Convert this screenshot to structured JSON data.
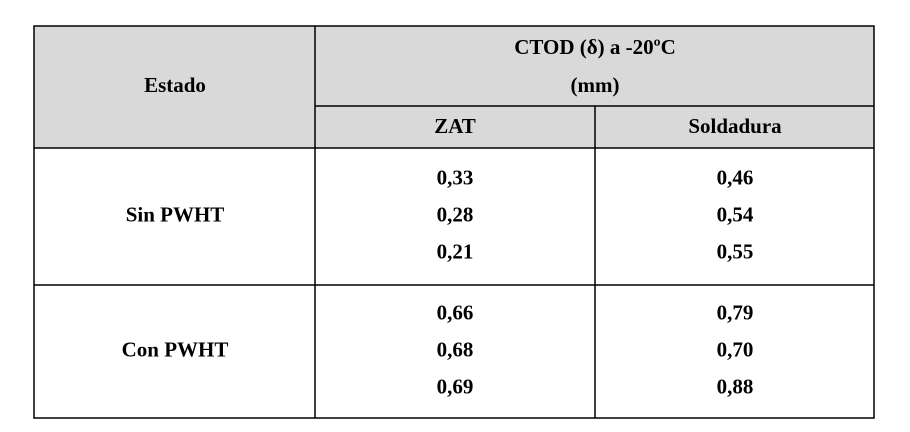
{
  "table": {
    "header": {
      "estado": "Estado",
      "group": [
        "CTOD (δ) a -20ºC",
        "(mm)"
      ],
      "columns": [
        "ZAT",
        "Soldadura"
      ]
    },
    "rows": [
      {
        "estado": "Sin PWHT",
        "zat": [
          "0,33",
          "0,28",
          "0,21"
        ],
        "soldadura": [
          "0,46",
          "0,54",
          "0,55"
        ]
      },
      {
        "estado": "Con PWHT",
        "zat": [
          "0,66",
          "0,68",
          "0,69"
        ],
        "soldadura": [
          "0,79",
          "0,70",
          "0,88"
        ]
      }
    ]
  }
}
